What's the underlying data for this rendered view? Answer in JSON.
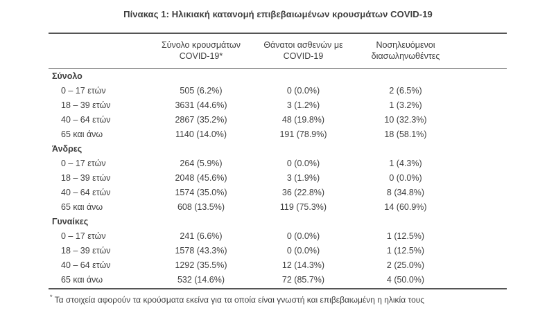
{
  "page_title": "Πίνακας 1: Ηλικιακή κατανομή επιβεβαιωμένων κρουσμάτων COVID-19",
  "colors": {
    "text": "#3d3d3d",
    "rule_lines": "#555555",
    "background": "#ffffff"
  },
  "table": {
    "header": {
      "col_cases": {
        "line1": "Σύνολο κρουσμάτων",
        "line2": "COVID-19*"
      },
      "col_deaths": {
        "line1": "Θάνατοι ασθενών με",
        "line2": "COVID-19"
      },
      "col_intubated": {
        "line1": "Νοσηλευόμενοι",
        "line2": "διασωληνωθέντες"
      }
    },
    "sections": [
      {
        "label": "Σύνολο",
        "rows": [
          {
            "age": "0 – 17 ετών",
            "cases": "505 (6.2%)",
            "deaths": "0 (0.0%)",
            "intubated": "2 (6.5%)"
          },
          {
            "age": "18 – 39 ετών",
            "cases": "3631 (44.6%)",
            "deaths": "3 (1.2%)",
            "intubated": "1 (3.2%)"
          },
          {
            "age": "40 – 64 ετών",
            "cases": "2867 (35.2%)",
            "deaths": "48 (19.8%)",
            "intubated": "10 (32.3%)"
          },
          {
            "age": "65 και άνω",
            "cases": "1140 (14.0%)",
            "deaths": "191 (78.9%)",
            "intubated": "18 (58.1%)"
          }
        ]
      },
      {
        "label": "Άνδρες",
        "rows": [
          {
            "age": "0 – 17 ετών",
            "cases": "264 (5.9%)",
            "deaths": "0 (0.0%)",
            "intubated": "1 (4.3%)"
          },
          {
            "age": "18 – 39 ετών",
            "cases": "2048 (45.6%)",
            "deaths": "3 (1.9%)",
            "intubated": "0 (0.0%)"
          },
          {
            "age": "40 – 64 ετών",
            "cases": "1574 (35.0%)",
            "deaths": "36 (22.8%)",
            "intubated": "8 (34.8%)"
          },
          {
            "age": "65 και άνω",
            "cases": "608 (13.5%)",
            "deaths": "119 (75.3%)",
            "intubated": "14 (60.9%)"
          }
        ]
      },
      {
        "label": "Γυναίκες",
        "rows": [
          {
            "age": "0 – 17 ετών",
            "cases": "241 (6.6%)",
            "deaths": "0 (0.0%)",
            "intubated": "1 (12.5%)"
          },
          {
            "age": "18 – 39 ετών",
            "cases": "1578 (43.3%)",
            "deaths": "0 (0.0%)",
            "intubated": "1 (12.5%)"
          },
          {
            "age": "40 – 64 ετών",
            "cases": "1292 (35.5%)",
            "deaths": "12 (14.3%)",
            "intubated": "2 (25.0%)"
          },
          {
            "age": "65 και άνω",
            "cases": "532 (14.6%)",
            "deaths": "72 (85.7%)",
            "intubated": "4 (50.0%)"
          }
        ]
      }
    ]
  },
  "footnote": {
    "marker": "*",
    "text": " Τα στοιχεία αφορούν τα κρούσματα εκείνα για τα οποία είναι γνωστή και επιβεβαιωμένη η ηλικία τους"
  }
}
